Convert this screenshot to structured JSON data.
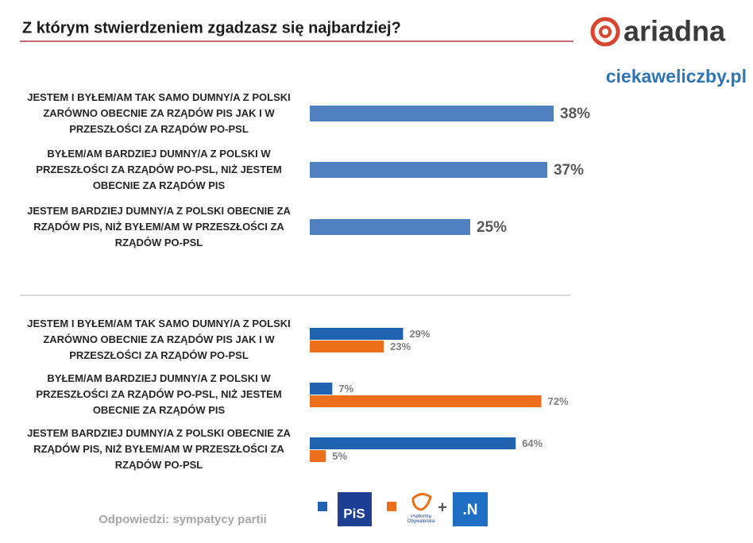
{
  "header": {
    "brand": "ariadna",
    "site": "ciekaweliczby.pl"
  },
  "chart_data": [
    {
      "type": "hbar",
      "title": "Z którym stwierdzeniem zgadzasz się najbardziej?",
      "categories": [
        "JESTEM I BYŁEM/AM TAK SAMO DUMNY/A Z POLSKI ZARÓWNO OBECNIE ZA RZĄDÓW PIS JAK I W PRZESZŁOŚCI ZA RZĄDÓW PO-PSL",
        "BYŁEM/AM BARDZIEJ DUMNY/A Z POLSKI W PRZESZŁOŚCI ZA RZĄDÓW PO-PSL, NIŻ JESTEM OBECNIE ZA RZĄDÓW PIS",
        "JESTEM BARDZIEJ DUMNY/A Z POLSKI OBECNIE ZA RZĄDÓW PIS, NIŻ BYŁEM/AM W PRZESZŁOŚCI ZA RZĄDÓW PO-PSL"
      ],
      "values": [
        38,
        37,
        25
      ],
      "value_labels": [
        "38%",
        "37%",
        "25%"
      ],
      "color": "#4f81c0",
      "xlim": [
        0,
        100
      ]
    },
    {
      "type": "grouped-hbar",
      "categories": [
        "JESTEM I BYŁEM/AM TAK SAMO DUMNY/A Z POLSKI ZARÓWNO OBECNIE ZA RZĄDÓW PIS JAK I W PRZESZŁOŚCI ZA RZĄDÓW PO-PSL",
        "BYŁEM/AM BARDZIEJ DUMNY/A Z POLSKI W PRZESZŁOŚCI ZA RZĄDÓW PO-PSL, NIŻ JESTEM OBECNIE ZA RZĄDÓW PIS",
        "JESTEM BARDZIEJ DUMNY/A Z POLSKI OBECNIE ZA RZĄDÓW PIS, NIŻ BYŁEM/AM W PRZESZŁOŚCI ZA RZĄDÓW PO-PSL"
      ],
      "series": [
        {
          "name": "PiS",
          "color": "#1f62ad",
          "values": [
            29,
            7,
            64
          ],
          "value_labels": [
            "29%",
            "7%",
            "64%"
          ]
        },
        {
          "name": "Platforma Obywatelska",
          "color": "#ec6f1c",
          "values": [
            23,
            72,
            5
          ],
          "value_labels": [
            "23%",
            "72%",
            "5%"
          ]
        }
      ],
      "legend_joiner": "+",
      "legend_extra": ".N",
      "xlim": [
        0,
        100
      ]
    }
  ],
  "footer": "Odpowiedzi: sympatycy partii"
}
